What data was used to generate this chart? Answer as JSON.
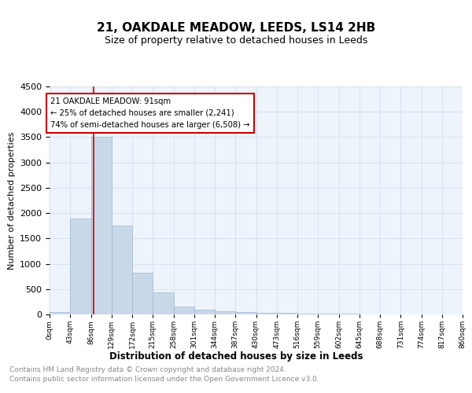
{
  "title": "21, OAKDALE MEADOW, LEEDS, LS14 2HB",
  "subtitle": "Size of property relative to detached houses in Leeds",
  "xlabel": "Distribution of detached houses by size in Leeds",
  "ylabel": "Number of detached properties",
  "annotation_line1": "21 OAKDALE MEADOW: 91sqm",
  "annotation_line2": "← 25% of detached houses are smaller (2,241)",
  "annotation_line3": "74% of semi-detached houses are larger (6,508) →",
  "property_size_sqm": 91,
  "bar_color": "#c8d8e8",
  "bar_edge_color": "#a0b8d0",
  "grid_color": "#d8e4f0",
  "annotation_line_color": "#cc0000",
  "annotation_box_color": "#cc0000",
  "ylim": [
    0,
    4500
  ],
  "yticks": [
    0,
    500,
    1000,
    1500,
    2000,
    2500,
    3000,
    3500,
    4000,
    4500
  ],
  "bin_edges": [
    0,
    43,
    86,
    129,
    172,
    215,
    258,
    301,
    344,
    387,
    430,
    473,
    516,
    559,
    602,
    645,
    688,
    731,
    774,
    817,
    860
  ],
  "bin_labels": [
    "0sqm",
    "43sqm",
    "86sqm",
    "129sqm",
    "172sqm",
    "215sqm",
    "258sqm",
    "301sqm",
    "344sqm",
    "387sqm",
    "430sqm",
    "473sqm",
    "516sqm",
    "559sqm",
    "602sqm",
    "645sqm",
    "688sqm",
    "731sqm",
    "774sqm",
    "817sqm",
    "860sqm"
  ],
  "bar_heights": [
    50,
    1900,
    3500,
    1750,
    820,
    440,
    150,
    95,
    65,
    45,
    35,
    25,
    15,
    10,
    8,
    6,
    5,
    4,
    3,
    2
  ],
  "footer_line1": "Contains HM Land Registry data © Crown copyright and database right 2024.",
  "footer_line2": "Contains public sector information licensed under the Open Government Licence v3.0.",
  "bg_color": "#ffffff",
  "plot_bg_color": "#eef4fb"
}
